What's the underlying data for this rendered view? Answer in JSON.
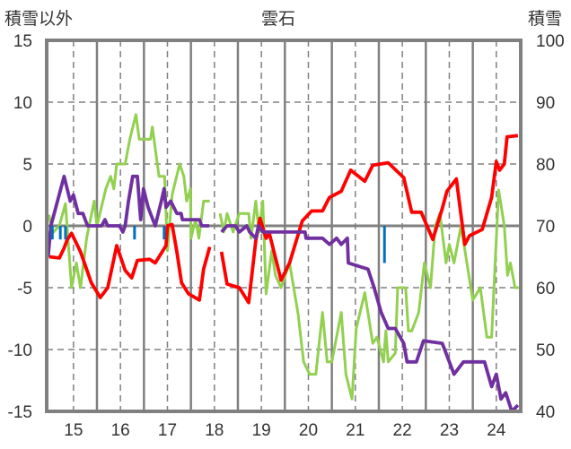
{
  "chart_data": {
    "type": "line",
    "title": "雲石",
    "ylabel_left": "積雪以外",
    "ylabel_right": "積雪",
    "xlim": [
      14.43,
      24.52
    ],
    "ylim_left": [
      -15,
      15
    ],
    "ylim_right": [
      40,
      100
    ],
    "x_ticks": [
      "15",
      "16",
      "17",
      "18",
      "19",
      "20",
      "21",
      "22",
      "23",
      "24"
    ],
    "x_tick_values": [
      15,
      16,
      17,
      18,
      19,
      20,
      21,
      22,
      23,
      24
    ],
    "y_ticks_left": [
      "15",
      "10",
      "5",
      "0",
      "-5",
      "-10",
      "-15"
    ],
    "y_tick_values_left": [
      15,
      10,
      5,
      0,
      -5,
      -10,
      -15
    ],
    "y_ticks_right": [
      "100",
      "90",
      "80",
      "70",
      "60",
      "50",
      "40"
    ],
    "y_tick_values_right": [
      100,
      90,
      80,
      70,
      60,
      50,
      40
    ],
    "grid": true,
    "series": [
      {
        "name": "green",
        "color": "#92d050",
        "axis": "left",
        "points": [
          [
            14.48,
            0.9
          ],
          [
            14.55,
            -0.6
          ],
          [
            14.7,
            0
          ],
          [
            14.83,
            1.8
          ],
          [
            14.96,
            -5
          ],
          [
            15.06,
            -3
          ],
          [
            15.15,
            -5
          ],
          [
            15.28,
            -1
          ],
          [
            15.44,
            2
          ],
          [
            15.5,
            0
          ],
          [
            15.69,
            3
          ],
          [
            15.79,
            4
          ],
          [
            15.86,
            3
          ],
          [
            15.92,
            5
          ],
          [
            16.1,
            5
          ],
          [
            16.2,
            7
          ],
          [
            16.33,
            9
          ],
          [
            16.4,
            7
          ],
          [
            16.64,
            7
          ],
          [
            16.68,
            8
          ],
          [
            16.82,
            4
          ],
          [
            16.94,
            4
          ],
          [
            17.0,
            -2
          ],
          [
            17.1,
            2.5
          ],
          [
            17.26,
            5
          ],
          [
            17.35,
            4
          ],
          [
            17.41,
            2
          ],
          [
            17.49,
            3
          ],
          [
            17.5,
            -1
          ],
          [
            17.6,
            0.5
          ],
          [
            17.67,
            -1
          ],
          [
            17.77,
            2
          ],
          [
            17.9,
            2
          ],
          null,
          [
            18.12,
            1
          ],
          [
            18.2,
            -0.5
          ],
          [
            18.27,
            1
          ],
          [
            18.4,
            -0.5
          ],
          [
            18.53,
            1
          ],
          [
            18.73,
            1
          ],
          [
            18.78,
            -1
          ],
          [
            18.88,
            2
          ],
          [
            18.95,
            -0.5
          ],
          [
            19.03,
            2
          ],
          [
            19.1,
            -5.5
          ],
          [
            19.22,
            -2
          ],
          [
            19.3,
            -4
          ],
          [
            19.42,
            -5
          ],
          [
            19.6,
            -3
          ],
          [
            19.78,
            -7.1
          ],
          [
            19.9,
            -11
          ],
          [
            20.03,
            -12
          ],
          [
            20.16,
            -12
          ],
          [
            20.3,
            -7
          ],
          [
            20.4,
            -11
          ],
          [
            20.5,
            -11
          ],
          [
            20.7,
            -7
          ],
          [
            20.8,
            -12
          ],
          [
            20.93,
            -14
          ],
          [
            21.02,
            -8.3
          ],
          [
            21.2,
            -5.4
          ],
          [
            21.37,
            -9.5
          ],
          [
            21.46,
            -9
          ],
          [
            21.6,
            -11
          ],
          [
            21.65,
            -8.5
          ],
          [
            21.7,
            -11
          ],
          [
            21.85,
            -10.3
          ],
          [
            21.9,
            -5
          ],
          [
            22.07,
            -5
          ],
          [
            22.13,
            -8.5
          ],
          [
            22.2,
            -8.5
          ],
          [
            22.35,
            -7
          ],
          [
            22.47,
            -3
          ],
          [
            22.6,
            -5
          ],
          [
            22.7,
            0
          ],
          [
            22.8,
            1
          ],
          [
            22.93,
            -3
          ],
          [
            23.0,
            -1.5
          ],
          [
            23.1,
            -3
          ],
          [
            23.25,
            0
          ],
          [
            23.5,
            -6
          ],
          [
            23.66,
            -5
          ],
          [
            23.8,
            -9
          ],
          [
            23.9,
            -9
          ],
          [
            24.05,
            2.9
          ],
          [
            24.17,
            0
          ],
          [
            24.24,
            -4
          ],
          [
            24.3,
            -3
          ],
          [
            24.4,
            -5
          ],
          [
            24.48,
            -5
          ]
        ]
      },
      {
        "name": "red",
        "color": "#ff0000",
        "axis": "left",
        "points": [
          [
            14.48,
            -2.5
          ],
          [
            14.7,
            -2.6
          ],
          [
            14.8,
            -1.8
          ],
          [
            14.87,
            -1.1
          ],
          [
            14.96,
            -0.6
          ],
          [
            15.15,
            -2.1
          ],
          [
            15.38,
            -4.6
          ],
          [
            15.57,
            -5.8
          ],
          [
            15.73,
            -5.0
          ],
          [
            15.92,
            -1.6
          ],
          [
            16.1,
            -3.6
          ],
          [
            16.24,
            -4.2
          ],
          [
            16.36,
            -2.8
          ],
          [
            16.62,
            -2.7
          ],
          [
            16.74,
            -3
          ],
          [
            16.97,
            -1.6
          ],
          [
            17.0,
            0
          ],
          [
            17.1,
            0.1
          ],
          [
            17.2,
            -2.1
          ],
          [
            17.3,
            -4.6
          ],
          [
            17.45,
            -5.5
          ],
          [
            17.68,
            -6.0
          ],
          [
            17.77,
            -3.5
          ],
          [
            17.9,
            -1.7
          ],
          null,
          [
            18.15,
            -2.1
          ],
          [
            18.27,
            -4.7
          ],
          [
            18.53,
            -5
          ],
          [
            18.73,
            -6.2
          ],
          [
            18.88,
            -1.2
          ],
          [
            18.97,
            0.6
          ],
          [
            19.1,
            -1
          ],
          [
            19.17,
            -0.6
          ],
          [
            19.42,
            -4.4
          ],
          [
            19.6,
            -3
          ],
          [
            19.87,
            0.4
          ],
          [
            20.07,
            1.2
          ],
          [
            20.3,
            1.2
          ],
          [
            20.45,
            2.3
          ],
          [
            20.7,
            2.8
          ],
          [
            20.9,
            4.5
          ],
          [
            21.2,
            3.6
          ],
          [
            21.37,
            4.9
          ],
          [
            21.7,
            5.1
          ],
          [
            22.03,
            3.9
          ],
          [
            22.2,
            1.1
          ],
          [
            22.4,
            1.1
          ],
          [
            22.65,
            -1.1
          ],
          [
            22.85,
            1.4
          ],
          [
            22.95,
            2.8
          ],
          [
            23.15,
            3.8
          ],
          [
            23.33,
            -1.5
          ],
          [
            23.43,
            -0.8
          ],
          [
            23.7,
            -0.3
          ],
          [
            23.9,
            2.3
          ],
          [
            24.0,
            5.2
          ],
          [
            24.07,
            4.5
          ],
          [
            24.17,
            5
          ],
          [
            24.23,
            7.2
          ],
          [
            24.46,
            7.3
          ]
        ]
      },
      {
        "name": "purple",
        "color": "#7030a0",
        "axis": "right",
        "points": [
          [
            14.46,
            65
          ],
          [
            14.52,
            70
          ],
          [
            14.8,
            78
          ],
          [
            14.93,
            74
          ],
          [
            15.0,
            75
          ],
          [
            15.1,
            72
          ],
          [
            15.2,
            72
          ],
          [
            15.3,
            70
          ],
          [
            15.6,
            70
          ],
          [
            15.67,
            71
          ],
          [
            15.73,
            70
          ],
          [
            15.98,
            70
          ],
          [
            16.05,
            69
          ],
          [
            16.1,
            70
          ],
          [
            16.17,
            74
          ],
          [
            16.26,
            78
          ],
          [
            16.36,
            78
          ],
          [
            16.43,
            71
          ],
          [
            16.49,
            76
          ],
          [
            16.59,
            73
          ],
          [
            16.74,
            70
          ],
          [
            16.87,
            74
          ],
          [
            16.93,
            76
          ],
          [
            16.97,
            73
          ],
          [
            17.07,
            74
          ],
          [
            17.2,
            72
          ],
          [
            17.29,
            72
          ],
          [
            17.32,
            71
          ],
          [
            17.68,
            71
          ],
          [
            17.73,
            70
          ],
          [
            17.89,
            70
          ],
          null,
          [
            18.15,
            69
          ],
          [
            18.27,
            70
          ],
          [
            18.45,
            70
          ],
          [
            18.53,
            69
          ],
          [
            18.69,
            70
          ],
          [
            18.75,
            69
          ],
          [
            18.88,
            68
          ],
          [
            18.94,
            70
          ],
          [
            19.03,
            69
          ],
          [
            19.93,
            69
          ],
          [
            19.95,
            68
          ],
          [
            20.3,
            68
          ],
          [
            20.45,
            67
          ],
          [
            20.6,
            68
          ],
          [
            20.7,
            67
          ],
          [
            20.83,
            68
          ],
          [
            20.85,
            64
          ],
          [
            21.27,
            63
          ],
          [
            21.4,
            60
          ],
          [
            21.55,
            56
          ],
          [
            21.7,
            53.4
          ],
          [
            21.85,
            53.4
          ],
          [
            22.03,
            51
          ],
          [
            22.1,
            48
          ],
          [
            22.3,
            48
          ],
          [
            22.45,
            51.4
          ],
          [
            22.85,
            51
          ],
          [
            23.0,
            48
          ],
          [
            23.1,
            46
          ],
          [
            23.3,
            48
          ],
          [
            23.75,
            48
          ],
          [
            23.9,
            44
          ],
          [
            24.0,
            46
          ],
          [
            24.1,
            42
          ],
          [
            24.2,
            43
          ],
          [
            24.33,
            40
          ],
          [
            24.46,
            41
          ]
        ]
      },
      {
        "name": "blue",
        "color": "#0070c0",
        "axis": "left",
        "type": "bar",
        "points": [
          [
            14.55,
            -1.1
          ],
          [
            14.72,
            -1.1
          ],
          [
            14.83,
            -1.1
          ],
          [
            16.3,
            -1.1
          ],
          [
            16.93,
            -1.1
          ],
          [
            21.62,
            -3
          ]
        ]
      }
    ]
  }
}
